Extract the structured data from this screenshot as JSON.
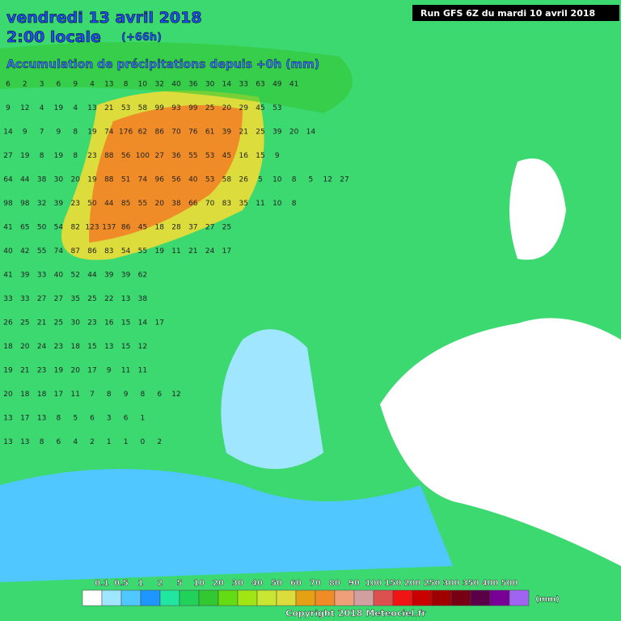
{
  "header": {
    "date": "vendredi 13 avril 2018",
    "time": "2:00 locale",
    "lead": "(+66h)",
    "subtitle": "Accumulation de précipitations depuis +0h (mm)",
    "run": "Run GFS 6Z du mardi 10 avril 2018"
  },
  "grid": {
    "rows": [
      [
        6,
        2,
        3,
        6,
        9,
        4,
        13,
        8,
        10,
        32,
        40,
        36,
        30,
        14,
        33,
        63,
        49,
        41
      ],
      [
        9,
        12,
        4,
        19,
        4,
        13,
        21,
        53,
        58,
        99,
        93,
        99,
        25,
        20,
        29,
        45,
        53
      ],
      [
        14,
        9,
        7,
        9,
        8,
        19,
        74,
        176,
        62,
        86,
        70,
        76,
        61,
        39,
        21,
        25,
        39,
        20,
        14
      ],
      [
        27,
        19,
        8,
        19,
        8,
        23,
        88,
        56,
        100,
        27,
        36,
        55,
        53,
        45,
        16,
        15,
        9
      ],
      [
        64,
        44,
        38,
        30,
        20,
        19,
        88,
        51,
        74,
        96,
        56,
        40,
        53,
        58,
        26,
        5,
        10,
        8,
        5,
        12,
        27
      ],
      [
        98,
        98,
        32,
        39,
        23,
        50,
        44,
        85,
        55,
        20,
        38,
        66,
        70,
        83,
        35,
        11,
        10,
        8
      ],
      [
        41,
        65,
        50,
        54,
        82,
        123,
        137,
        86,
        45,
        18,
        28,
        37,
        27,
        25
      ],
      [
        40,
        42,
        55,
        74,
        87,
        86,
        83,
        54,
        55,
        19,
        11,
        21,
        24,
        17
      ],
      [
        41,
        39,
        33,
        40,
        52,
        44,
        39,
        39,
        62
      ],
      [
        33,
        33,
        27,
        27,
        35,
        25,
        22,
        13,
        38
      ],
      [
        26,
        25,
        21,
        25,
        30,
        23,
        16,
        15,
        14,
        17
      ],
      [
        18,
        20,
        24,
        23,
        18,
        15,
        13,
        15,
        12
      ],
      [
        19,
        21,
        23,
        19,
        20,
        17,
        9,
        11,
        11
      ],
      [
        20,
        18,
        18,
        17,
        11,
        7,
        8,
        9,
        8,
        6,
        12
      ],
      [
        13,
        17,
        13,
        8,
        5,
        6,
        3,
        6,
        1
      ],
      [
        13,
        13,
        8,
        6,
        4,
        2,
        1,
        1,
        0,
        2
      ]
    ]
  },
  "legend": {
    "labels": [
      0.1,
      0.5,
      1,
      2,
      5,
      10,
      20,
      30,
      40,
      50,
      60,
      70,
      80,
      90,
      100,
      150,
      200,
      250,
      300,
      350,
      400,
      500
    ],
    "colors": [
      "#ffffff",
      "#a0e6ff",
      "#50c8ff",
      "#1e96ff",
      "#20e6a0",
      "#20d25a",
      "#32c832",
      "#64dc14",
      "#a0e614",
      "#c8e632",
      "#dcdc3c",
      "#e6a014",
      "#f08c28",
      "#f0a078",
      "#d2a0a0",
      "#dc5050",
      "#f01414",
      "#c80000",
      "#a00000",
      "#780014",
      "#5a0046",
      "#780096",
      "#a064f0"
    ],
    "unit": "(mm)"
  },
  "copyright": "Copyright 2018 Meteociel.fr"
}
